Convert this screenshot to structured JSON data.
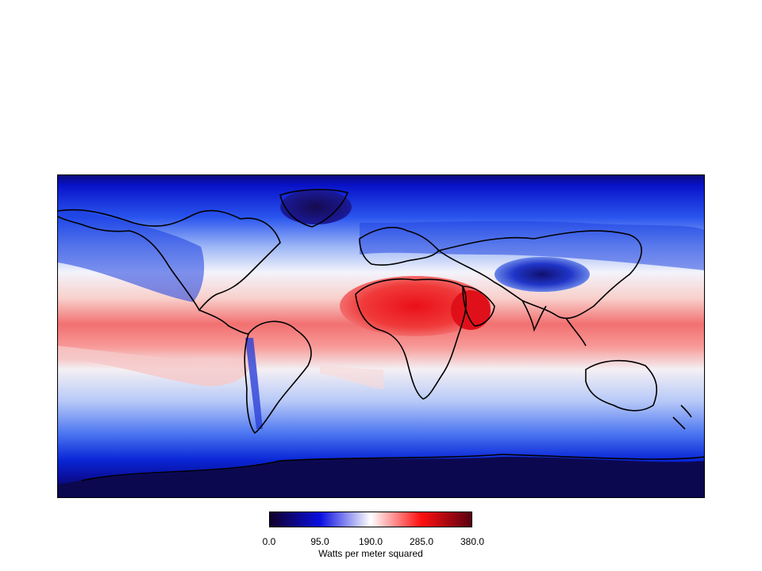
{
  "map": {
    "quantity": "Watts per meter squared",
    "colorbar": {
      "min": 0.0,
      "max": 380.0,
      "tick_labels": [
        "0.0",
        "95.0",
        "190.0",
        "285.0",
        "380.0"
      ],
      "title": "Watts per meter squared",
      "colors": [
        "#10002a",
        "#0a0ee0",
        "#ffffff",
        "#ff1010",
        "#5a0010"
      ]
    },
    "ocean_color_tropics": "#f26a6a",
    "polar_color": "#0a0a78",
    "coastline_color": "#000000"
  }
}
